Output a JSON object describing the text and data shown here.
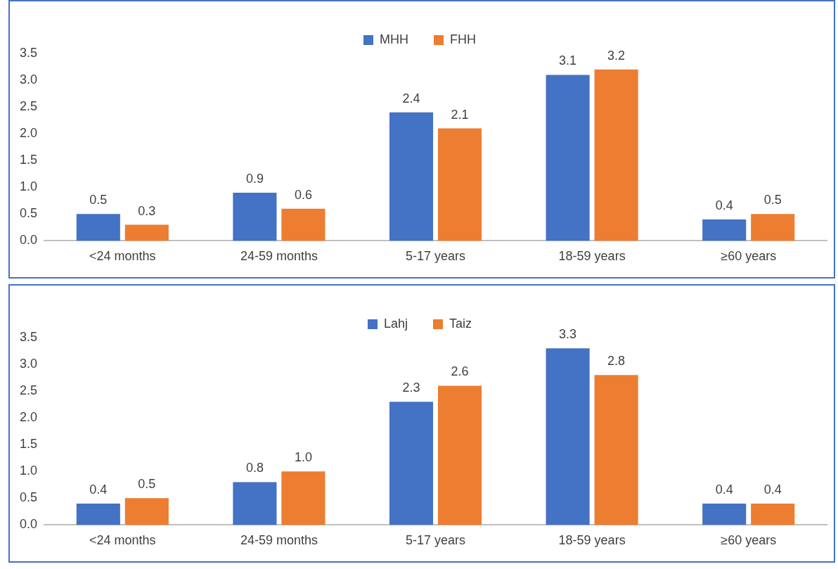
{
  "chart_data": [
    {
      "type": "bar",
      "categories": [
        "<24 months",
        "24-59 months",
        "5-17 years",
        "18-59 years",
        "≥60 years"
      ],
      "legend": "top",
      "ylim": [
        0,
        3.5
      ],
      "yticks": [
        {
          "value": 0,
          "label": "0.0"
        },
        {
          "value": 0.5,
          "label": "0.5"
        },
        {
          "value": 1,
          "label": "1.0"
        },
        {
          "value": 1.5,
          "label": "1.5"
        },
        {
          "value": 2,
          "label": "2.0"
        },
        {
          "value": 2.5,
          "label": "2.5"
        },
        {
          "value": 3,
          "label": "3.0"
        },
        {
          "value": 3.5,
          "label": "3.5"
        }
      ],
      "series": [
        {
          "name": "MHH",
          "color": "#4472c4",
          "values": [
            0.5,
            0.9,
            2.4,
            3.1,
            0.4
          ],
          "value_labels": [
            "0.5",
            "0.9",
            "2.4",
            "3.1",
            "0.4"
          ]
        },
        {
          "name": "FHH",
          "color": "#ed7d31",
          "values": [
            0.3,
            0.6,
            2.1,
            3.2,
            0.5
          ],
          "value_labels": [
            "0.3",
            "0.6",
            "2.1",
            "3.2",
            "0.5"
          ]
        }
      ]
    },
    {
      "type": "bar",
      "categories": [
        "<24 months",
        "24-59 months",
        "5-17 years",
        "18-59 years",
        "≥60 years"
      ],
      "legend": "top",
      "ylim": [
        0,
        3.5
      ],
      "yticks": [
        {
          "value": 0,
          "label": "0.0"
        },
        {
          "value": 0.5,
          "label": "0.5"
        },
        {
          "value": 1,
          "label": "1.0"
        },
        {
          "value": 1.5,
          "label": "1.5"
        },
        {
          "value": 2,
          "label": "2.0"
        },
        {
          "value": 2.5,
          "label": "2.5"
        },
        {
          "value": 3,
          "label": "3.0"
        },
        {
          "value": 3.5,
          "label": "3.5"
        }
      ],
      "series": [
        {
          "name": "Lahj",
          "color": "#4472c4",
          "values": [
            0.4,
            0.8,
            2.3,
            3.3,
            0.4
          ],
          "value_labels": [
            "0.4",
            "0.8",
            "2.3",
            "3.3",
            "0.4"
          ]
        },
        {
          "name": "Taiz",
          "color": "#ed7d31",
          "values": [
            0.5,
            1.0,
            2.6,
            2.8,
            0.4
          ],
          "value_labels": [
            "0.5",
            "1.0",
            "2.6",
            "2.8",
            "0.4"
          ]
        }
      ]
    }
  ]
}
